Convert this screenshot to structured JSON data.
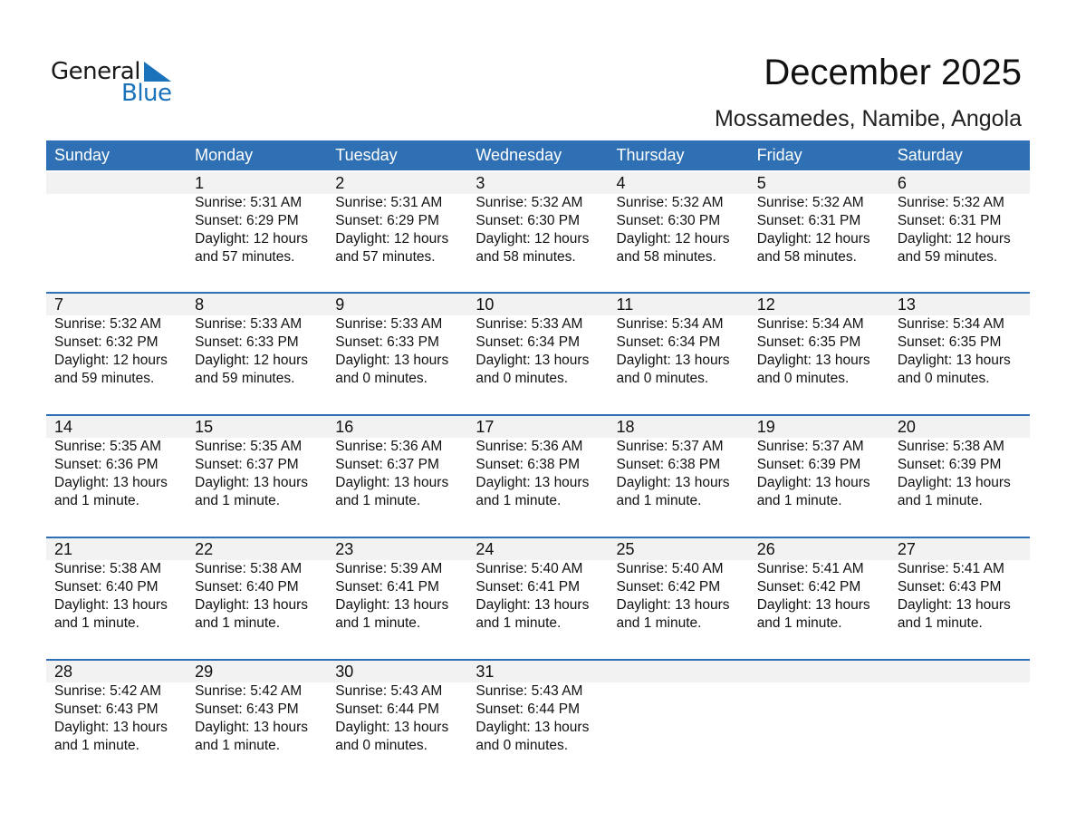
{
  "logo": {
    "word1": "General",
    "word2": "Blue",
    "color": "#1a72bb"
  },
  "title": "December 2025",
  "location": "Mossamedes, Namibe, Angola",
  "colors": {
    "header": "#2e70b3",
    "band": "#f2f2f2"
  },
  "weekdays": [
    "Sunday",
    "Monday",
    "Tuesday",
    "Wednesday",
    "Thursday",
    "Friday",
    "Saturday"
  ],
  "weeks": [
    [
      null,
      {
        "day": "1",
        "sunrise": "Sunrise: 5:31 AM",
        "sunset": "Sunset: 6:29 PM",
        "daylight": "Daylight: 12 hours",
        "minutes": "and 57 minutes."
      },
      {
        "day": "2",
        "sunrise": "Sunrise: 5:31 AM",
        "sunset": "Sunset: 6:29 PM",
        "daylight": "Daylight: 12 hours",
        "minutes": "and 57 minutes."
      },
      {
        "day": "3",
        "sunrise": "Sunrise: 5:32 AM",
        "sunset": "Sunset: 6:30 PM",
        "daylight": "Daylight: 12 hours",
        "minutes": "and 58 minutes."
      },
      {
        "day": "4",
        "sunrise": "Sunrise: 5:32 AM",
        "sunset": "Sunset: 6:30 PM",
        "daylight": "Daylight: 12 hours",
        "minutes": "and 58 minutes."
      },
      {
        "day": "5",
        "sunrise": "Sunrise: 5:32 AM",
        "sunset": "Sunset: 6:31 PM",
        "daylight": "Daylight: 12 hours",
        "minutes": "and 58 minutes."
      },
      {
        "day": "6",
        "sunrise": "Sunrise: 5:32 AM",
        "sunset": "Sunset: 6:31 PM",
        "daylight": "Daylight: 12 hours",
        "minutes": "and 59 minutes."
      }
    ],
    [
      {
        "day": "7",
        "sunrise": "Sunrise: 5:32 AM",
        "sunset": "Sunset: 6:32 PM",
        "daylight": "Daylight: 12 hours",
        "minutes": "and 59 minutes."
      },
      {
        "day": "8",
        "sunrise": "Sunrise: 5:33 AM",
        "sunset": "Sunset: 6:33 PM",
        "daylight": "Daylight: 12 hours",
        "minutes": "and 59 minutes."
      },
      {
        "day": "9",
        "sunrise": "Sunrise: 5:33 AM",
        "sunset": "Sunset: 6:33 PM",
        "daylight": "Daylight: 13 hours",
        "minutes": "and 0 minutes."
      },
      {
        "day": "10",
        "sunrise": "Sunrise: 5:33 AM",
        "sunset": "Sunset: 6:34 PM",
        "daylight": "Daylight: 13 hours",
        "minutes": "and 0 minutes."
      },
      {
        "day": "11",
        "sunrise": "Sunrise: 5:34 AM",
        "sunset": "Sunset: 6:34 PM",
        "daylight": "Daylight: 13 hours",
        "minutes": "and 0 minutes."
      },
      {
        "day": "12",
        "sunrise": "Sunrise: 5:34 AM",
        "sunset": "Sunset: 6:35 PM",
        "daylight": "Daylight: 13 hours",
        "minutes": "and 0 minutes."
      },
      {
        "day": "13",
        "sunrise": "Sunrise: 5:34 AM",
        "sunset": "Sunset: 6:35 PM",
        "daylight": "Daylight: 13 hours",
        "minutes": "and 0 minutes."
      }
    ],
    [
      {
        "day": "14",
        "sunrise": "Sunrise: 5:35 AM",
        "sunset": "Sunset: 6:36 PM",
        "daylight": "Daylight: 13 hours",
        "minutes": "and 1 minute."
      },
      {
        "day": "15",
        "sunrise": "Sunrise: 5:35 AM",
        "sunset": "Sunset: 6:37 PM",
        "daylight": "Daylight: 13 hours",
        "minutes": "and 1 minute."
      },
      {
        "day": "16",
        "sunrise": "Sunrise: 5:36 AM",
        "sunset": "Sunset: 6:37 PM",
        "daylight": "Daylight: 13 hours",
        "minutes": "and 1 minute."
      },
      {
        "day": "17",
        "sunrise": "Sunrise: 5:36 AM",
        "sunset": "Sunset: 6:38 PM",
        "daylight": "Daylight: 13 hours",
        "minutes": "and 1 minute."
      },
      {
        "day": "18",
        "sunrise": "Sunrise: 5:37 AM",
        "sunset": "Sunset: 6:38 PM",
        "daylight": "Daylight: 13 hours",
        "minutes": "and 1 minute."
      },
      {
        "day": "19",
        "sunrise": "Sunrise: 5:37 AM",
        "sunset": "Sunset: 6:39 PM",
        "daylight": "Daylight: 13 hours",
        "minutes": "and 1 minute."
      },
      {
        "day": "20",
        "sunrise": "Sunrise: 5:38 AM",
        "sunset": "Sunset: 6:39 PM",
        "daylight": "Daylight: 13 hours",
        "minutes": "and 1 minute."
      }
    ],
    [
      {
        "day": "21",
        "sunrise": "Sunrise: 5:38 AM",
        "sunset": "Sunset: 6:40 PM",
        "daylight": "Daylight: 13 hours",
        "minutes": "and 1 minute."
      },
      {
        "day": "22",
        "sunrise": "Sunrise: 5:38 AM",
        "sunset": "Sunset: 6:40 PM",
        "daylight": "Daylight: 13 hours",
        "minutes": "and 1 minute."
      },
      {
        "day": "23",
        "sunrise": "Sunrise: 5:39 AM",
        "sunset": "Sunset: 6:41 PM",
        "daylight": "Daylight: 13 hours",
        "minutes": "and 1 minute."
      },
      {
        "day": "24",
        "sunrise": "Sunrise: 5:40 AM",
        "sunset": "Sunset: 6:41 PM",
        "daylight": "Daylight: 13 hours",
        "minutes": "and 1 minute."
      },
      {
        "day": "25",
        "sunrise": "Sunrise: 5:40 AM",
        "sunset": "Sunset: 6:42 PM",
        "daylight": "Daylight: 13 hours",
        "minutes": "and 1 minute."
      },
      {
        "day": "26",
        "sunrise": "Sunrise: 5:41 AM",
        "sunset": "Sunset: 6:42 PM",
        "daylight": "Daylight: 13 hours",
        "minutes": "and 1 minute."
      },
      {
        "day": "27",
        "sunrise": "Sunrise: 5:41 AM",
        "sunset": "Sunset: 6:43 PM",
        "daylight": "Daylight: 13 hours",
        "minutes": "and 1 minute."
      }
    ],
    [
      {
        "day": "28",
        "sunrise": "Sunrise: 5:42 AM",
        "sunset": "Sunset: 6:43 PM",
        "daylight": "Daylight: 13 hours",
        "minutes": "and 1 minute."
      },
      {
        "day": "29",
        "sunrise": "Sunrise: 5:42 AM",
        "sunset": "Sunset: 6:43 PM",
        "daylight": "Daylight: 13 hours",
        "minutes": "and 1 minute."
      },
      {
        "day": "30",
        "sunrise": "Sunrise: 5:43 AM",
        "sunset": "Sunset: 6:44 PM",
        "daylight": "Daylight: 13 hours",
        "minutes": "and 0 minutes."
      },
      {
        "day": "31",
        "sunrise": "Sunrise: 5:43 AM",
        "sunset": "Sunset: 6:44 PM",
        "daylight": "Daylight: 13 hours",
        "minutes": "and 0 minutes."
      },
      null,
      null,
      null
    ]
  ]
}
